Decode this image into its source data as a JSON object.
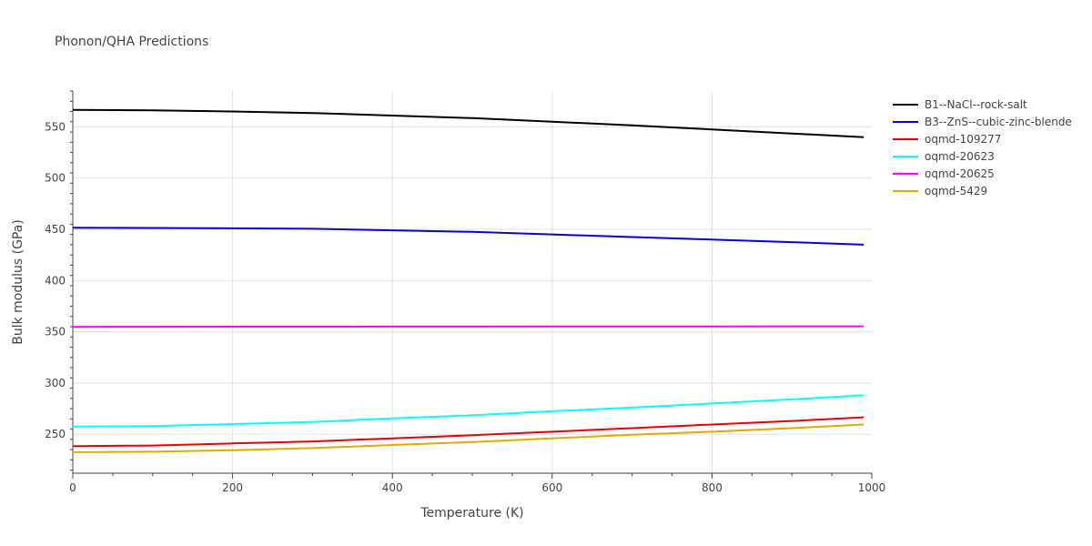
{
  "chart_data": {
    "type": "line",
    "title": "Phonon/QHA Predictions",
    "xlabel": "Temperature (K)",
    "ylabel": "Bulk modulus (GPa)",
    "xlim": [
      0,
      1000
    ],
    "ylim": [
      212,
      585
    ],
    "xticks": [
      0,
      200,
      400,
      600,
      800,
      1000
    ],
    "yticks": [
      250,
      300,
      350,
      400,
      450,
      500,
      550
    ],
    "x": [
      0,
      100,
      200,
      300,
      400,
      500,
      600,
      700,
      800,
      900,
      990
    ],
    "legend_position": "top-right",
    "grid": true,
    "series": [
      {
        "name": "B1--NaCl--rock-salt",
        "color": "#000000",
        "values": [
          566.5,
          566.2,
          565.0,
          563.5,
          561.0,
          558.5,
          555.0,
          551.5,
          547.5,
          543.5,
          540.0
        ]
      },
      {
        "name": "B3--ZnS--cubic-zinc-blende",
        "color": "#0000ee",
        "values": [
          451.5,
          451.3,
          451.0,
          450.5,
          449.0,
          447.5,
          445.0,
          442.5,
          440.0,
          437.5,
          435.0
        ]
      },
      {
        "name": "oqmd-109277",
        "color": "#ee0000",
        "values": [
          238.5,
          239.0,
          241.0,
          243.0,
          246.0,
          249.0,
          252.5,
          256.0,
          259.5,
          263.0,
          266.5
        ]
      },
      {
        "name": "oqmd-20623",
        "color": "#00ffff",
        "values": [
          257.5,
          258.0,
          260.0,
          262.0,
          265.5,
          268.5,
          272.5,
          276.0,
          280.0,
          284.0,
          288.0
        ]
      },
      {
        "name": "oqmd-20625",
        "color": "#ff00ff",
        "values": [
          354.8,
          354.9,
          355.0,
          355.0,
          355.1,
          355.1,
          355.2,
          355.2,
          355.2,
          355.3,
          355.3
        ]
      },
      {
        "name": "oqmd-5429",
        "color": "#e6a800",
        "values": [
          232.5,
          233.0,
          234.5,
          236.5,
          239.5,
          242.5,
          246.0,
          249.5,
          252.5,
          256.0,
          259.5
        ]
      }
    ]
  }
}
